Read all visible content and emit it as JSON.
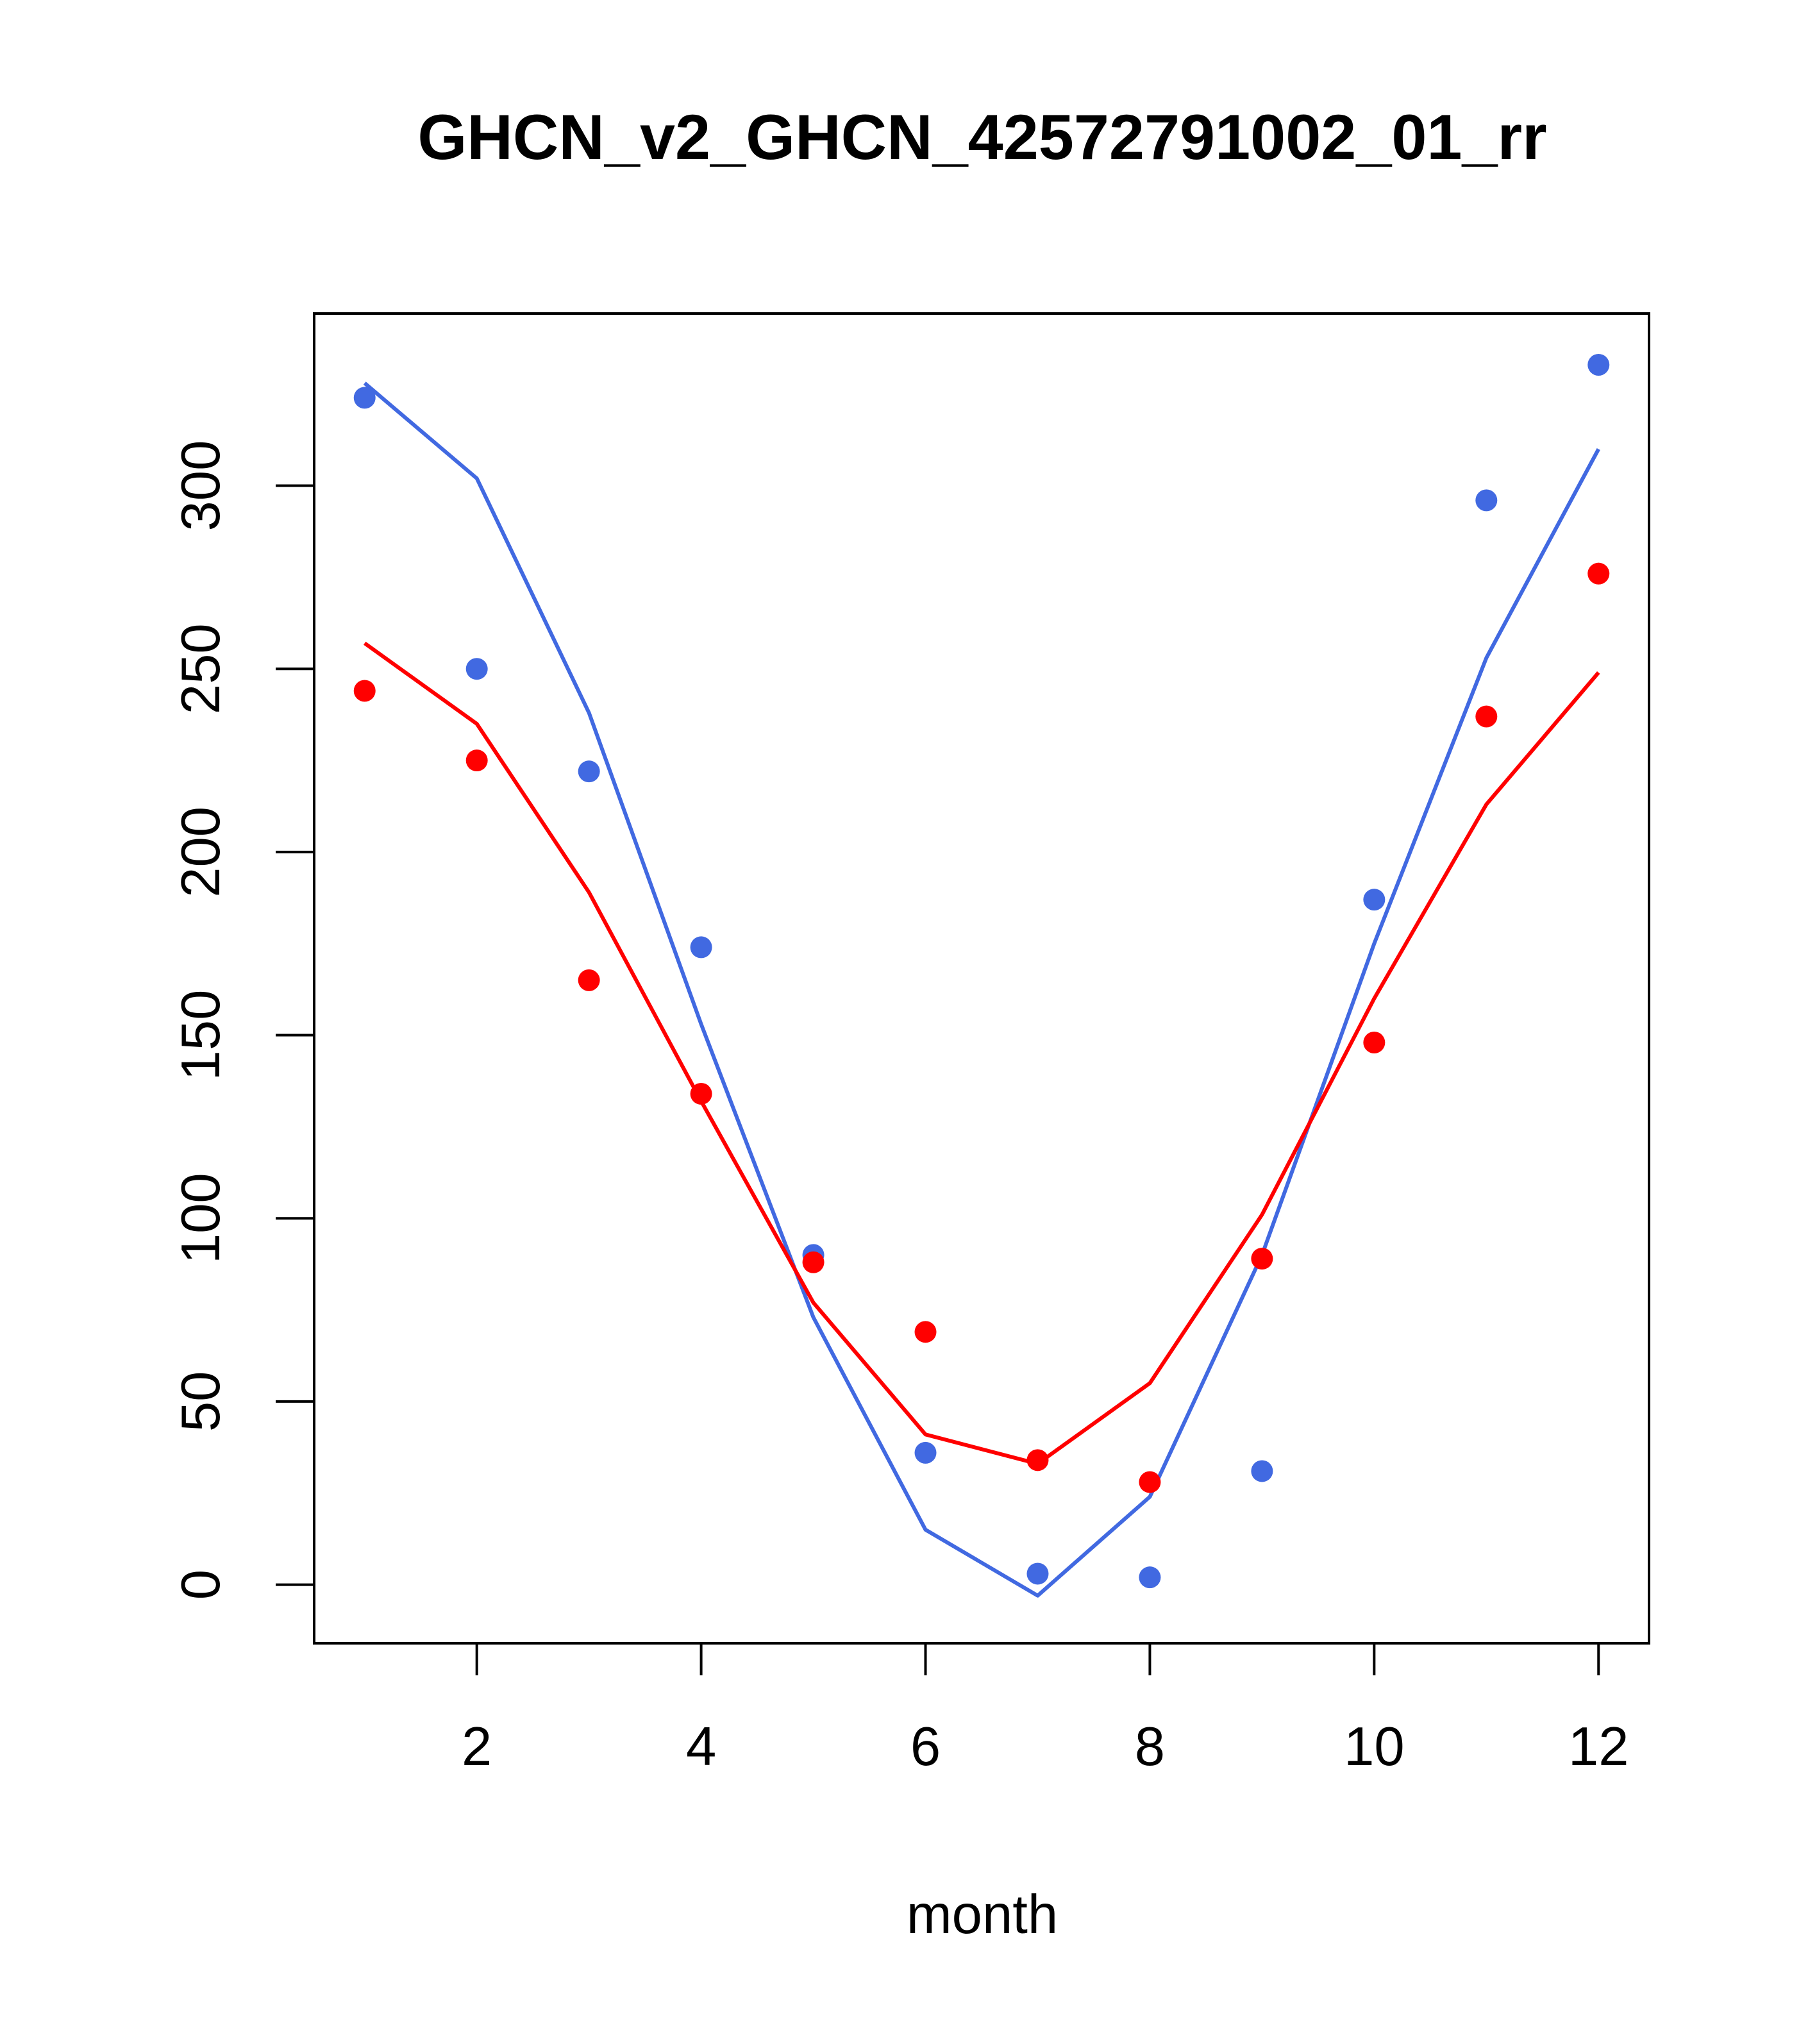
{
  "chart_data": {
    "type": "line",
    "title": "GHCN_v2_GHCN_42572791002_01_rr",
    "xlabel": "month",
    "ylabel": "",
    "xlim": [
      0.55,
      12.45
    ],
    "ylim": [
      -16,
      347
    ],
    "x_ticks": [
      2,
      4,
      6,
      8,
      10,
      12
    ],
    "y_ticks": [
      0,
      50,
      100,
      150,
      200,
      250,
      300
    ],
    "grid": false,
    "legend": "none",
    "x": [
      1,
      2,
      3,
      4,
      5,
      6,
      7,
      8,
      9,
      10,
      11,
      12
    ],
    "series": [
      {
        "color": "#4169E1",
        "points": [
          324,
          250,
          222,
          174,
          90,
          36,
          3,
          2,
          31,
          187,
          296,
          333
        ],
        "line": [
          328,
          302,
          238,
          153,
          73,
          15,
          -3,
          24,
          90,
          175,
          253,
          310
        ]
      },
      {
        "color": "#FF0000",
        "points": [
          244,
          225,
          165,
          134,
          88,
          69,
          34,
          28,
          89,
          148,
          237,
          276
        ],
        "line": [
          257,
          235,
          189,
          132,
          77,
          41,
          33,
          55,
          101,
          160,
          213,
          249
        ]
      }
    ]
  }
}
